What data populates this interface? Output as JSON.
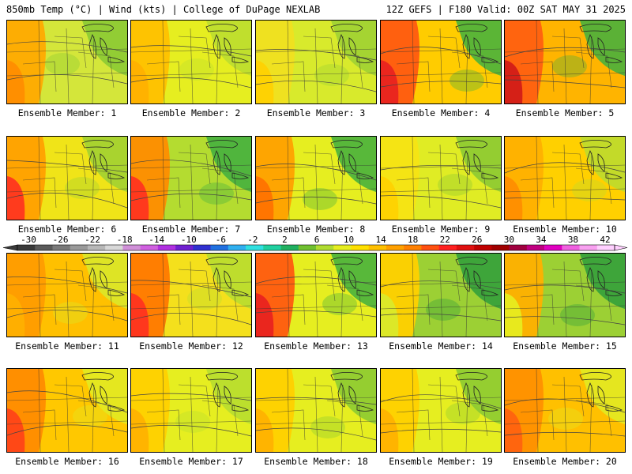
{
  "header": {
    "left": "850mb Temp (°C) | Wind (kts) | College of DuPage NEXLAB",
    "right": "12Z GEFS | F180 Valid: 00Z SAT MAY 31 2025"
  },
  "label_prefix": "Ensemble Member:",
  "members": [
    {
      "id": 1,
      "label": "Ensemble Member: 1",
      "base": "#d4e63a",
      "west": "#ffaa00",
      "warm": "#ff8c00",
      "cool": "#86c834"
    },
    {
      "id": 2,
      "label": "Ensemble Member: 2",
      "base": "#e6ee20",
      "west": "#ffc000",
      "warm": "#ffb000",
      "cool": "#b8dc30"
    },
    {
      "id": 3,
      "label": "Ensemble Member: 3",
      "base": "#d8ea2c",
      "west": "#f0e020",
      "warm": "#ffd000",
      "cool": "#9cd034"
    },
    {
      "id": 4,
      "label": "Ensemble Member: 4",
      "base": "#ffcc00",
      "west": "#ff5a10",
      "warm": "#e82020",
      "cool": "#3eb040"
    },
    {
      "id": 5,
      "label": "Ensemble Member: 5",
      "base": "#ffb400",
      "west": "#ff6010",
      "warm": "#d01818",
      "cool": "#3eb040"
    },
    {
      "id": 6,
      "label": "Ensemble Member: 6",
      "base": "#f0e418",
      "west": "#ffa000",
      "warm": "#ff3020",
      "cool": "#9cd034"
    },
    {
      "id": 7,
      "label": "Ensemble Member: 7",
      "base": "#b4dc30",
      "west": "#ff8c00",
      "warm": "#ff3020",
      "cool": "#3eae40"
    },
    {
      "id": 8,
      "label": "Ensemble Member: 8",
      "base": "#e6ee20",
      "west": "#ffa000",
      "warm": "#ff7000",
      "cool": "#3eae40"
    },
    {
      "id": 9,
      "label": "Ensemble Member: 9",
      "base": "#e0ec24",
      "west": "#f6e414",
      "warm": "#ffd000",
      "cool": "#86c834"
    },
    {
      "id": 10,
      "label": "Ensemble Member: 10",
      "base": "#ffd000",
      "west": "#ffb000",
      "warm": "#ff8c00",
      "cool": "#b8dc30"
    },
    {
      "id": 11,
      "label": "Ensemble Member: 11",
      "base": "#ffc000",
      "west": "#ff9c00",
      "warm": "#ffb000",
      "cool": "#d8ea2c"
    },
    {
      "id": 12,
      "label": "Ensemble Member: 12",
      "base": "#f4e01c",
      "west": "#ff7800",
      "warm": "#ff3020",
      "cool": "#b4dc30"
    },
    {
      "id": 13,
      "label": "Ensemble Member: 13",
      "base": "#e6ee20",
      "west": "#ff5a10",
      "warm": "#e82020",
      "cool": "#3eae40"
    },
    {
      "id": 14,
      "label": "Ensemble Member: 14",
      "base": "#9cd034",
      "west": "#ffd000",
      "warm": "#d8ea2c",
      "cool": "#2e9e3c"
    },
    {
      "id": 15,
      "label": "Ensemble Member: 15",
      "base": "#9cd034",
      "west": "#ffb000",
      "warm": "#e6ee20",
      "cool": "#2e9e3c"
    },
    {
      "id": 16,
      "label": "Ensemble Member: 16",
      "base": "#ffc800",
      "west": "#ff8c00",
      "warm": "#ff4018",
      "cool": "#e0ec24"
    },
    {
      "id": 17,
      "label": "Ensemble Member: 17",
      "base": "#e6ee20",
      "west": "#ffd000",
      "warm": "#ffb000",
      "cool": "#b4dc30"
    },
    {
      "id": 18,
      "label": "Ensemble Member: 18",
      "base": "#e6ee20",
      "west": "#ffd000",
      "warm": "#ffb000",
      "cool": "#86c834"
    },
    {
      "id": 19,
      "label": "Ensemble Member: 19",
      "base": "#e6ee20",
      "west": "#ffd000",
      "warm": "#ffb000",
      "cool": "#86c834"
    },
    {
      "id": 20,
      "label": "Ensemble Member: 20",
      "base": "#ffc000",
      "west": "#ff9000",
      "warm": "#ff6010",
      "cool": "#e0ec24"
    }
  ],
  "colorbar": {
    "ticks": [
      "-30",
      "-26",
      "-22",
      "-18",
      "-14",
      "-10",
      "-6",
      "-2",
      "2",
      "6",
      "10",
      "14",
      "18",
      "22",
      "26",
      "30",
      "34",
      "38",
      "42"
    ],
    "colors": [
      "#3a3a3a",
      "#5a5a5a",
      "#7a7a7a",
      "#9a9a9a",
      "#b8b8b8",
      "#d8d8d8",
      "#d090d8",
      "#d060e0",
      "#b030e0",
      "#7020d0",
      "#3030d0",
      "#2070e0",
      "#30b0f0",
      "#30e0e0",
      "#20d0a0",
      "#20b060",
      "#70c030",
      "#b0dc30",
      "#e6ee20",
      "#ffe000",
      "#ffc000",
      "#ffa000",
      "#ff8000",
      "#ff5010",
      "#ff2020",
      "#e01010",
      "#c00000",
      "#a00000",
      "#a00040",
      "#c00080",
      "#e000c0",
      "#f060e0",
      "#f8a0f0",
      "#ffd0ff"
    ]
  }
}
